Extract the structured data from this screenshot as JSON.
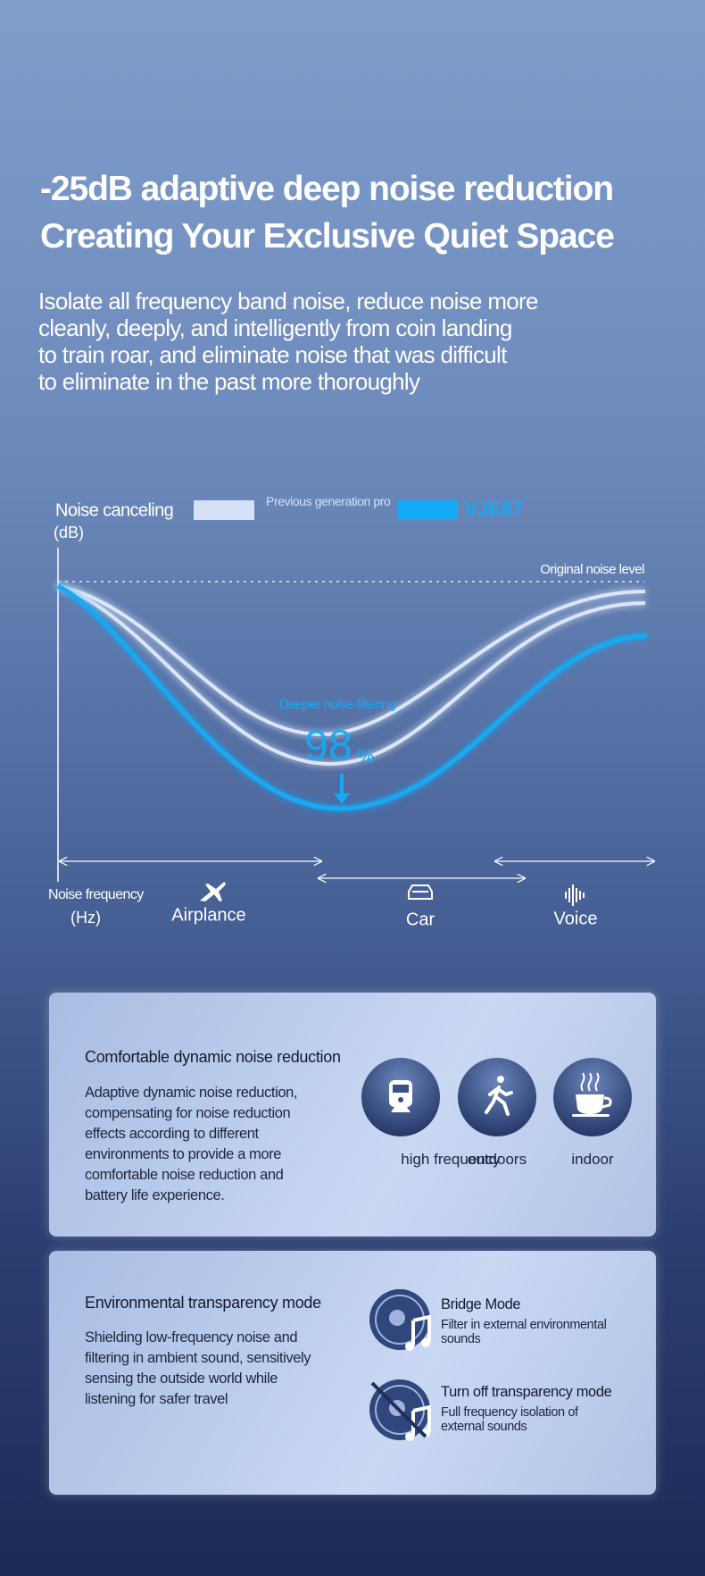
{
  "header": {
    "title_lines": [
      "-25dB adaptive deep noise reduction",
      "Creating Your Exclusive Quiet Space"
    ],
    "description_lines": [
      "Isolate all frequency band noise, reduce noise more",
      "cleanly, deeply, and intelligently from coin landing",
      "to train roar, and eliminate noise that was difficult",
      "to eliminate in the past more thoroughly"
    ]
  },
  "chart": {
    "y_label": "Noise canceling",
    "y_unit": "(dB)",
    "legend": {
      "previous": "Previous generation product",
      "current": "VJE87"
    },
    "reference_label": "Original noise level",
    "annotation": "Deeper noise filtering",
    "highlight": {
      "number": "98",
      "unit": "%"
    },
    "x_label": "Noise frequency",
    "x_unit": "(Hz)",
    "ranges": [
      "Airplance",
      "Car",
      "Voice"
    ]
  },
  "cards": [
    {
      "title": "Comfortable dynamic noise reduction",
      "text_lines": [
        "Adaptive dynamic noise reduction,",
        "compensating for noise reduction",
        "effects according to different",
        "environments to provide a more",
        "comfortable noise reduction and",
        "battery life experience."
      ],
      "modes": [
        "high frequency",
        "outdoors",
        "indoor"
      ]
    },
    {
      "title": "Environmental transparency mode",
      "text_lines": [
        "Shielding low-frequency noise and",
        "filtering in ambient sound, sensitively",
        "sensing the outside world while",
        "listening for safer travel"
      ],
      "modes": [
        {
          "name": "Bridge Mode",
          "description": "Filter in external environmental sounds"
        },
        {
          "name": "Turn off transparency mode",
          "description": "Full frequency isolation of external sounds"
        }
      ]
    }
  ]
}
